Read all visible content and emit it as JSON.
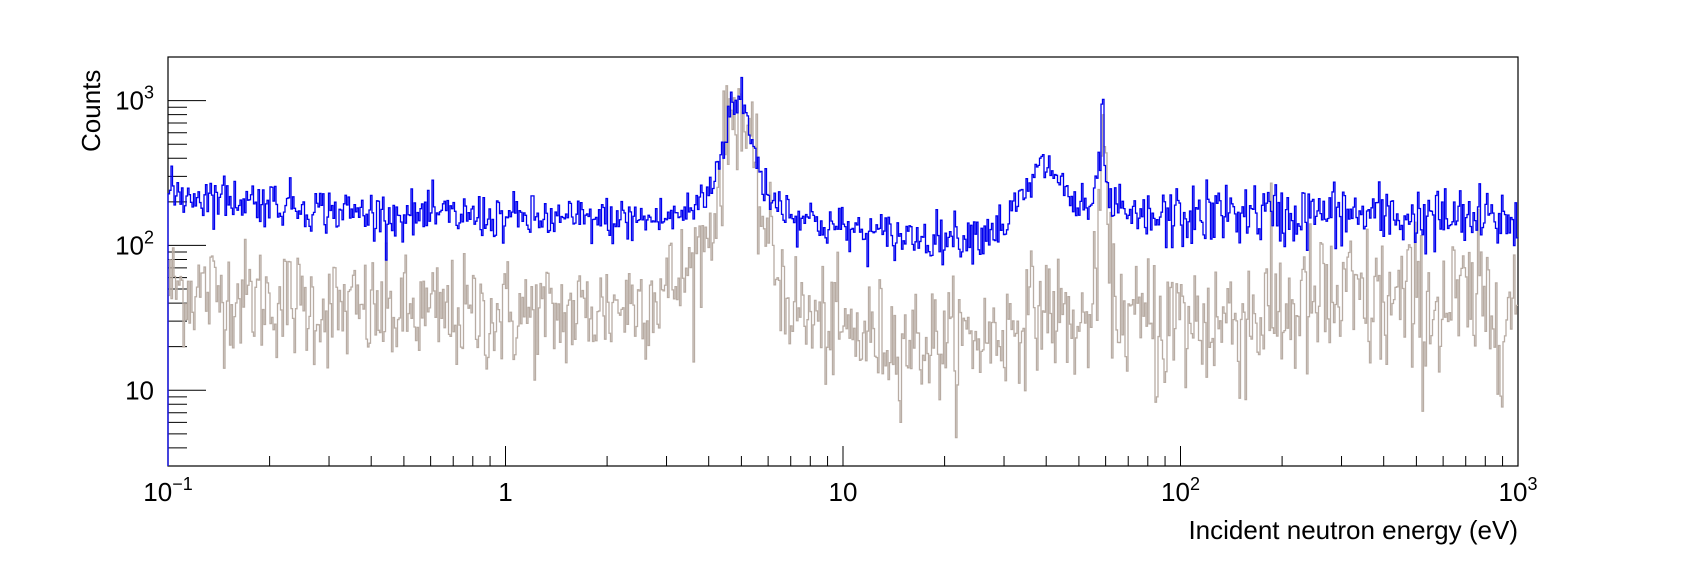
{
  "chart_data": {
    "type": "line",
    "style": "step-histogram",
    "xlabel": "Incident neutron energy (eV)",
    "ylabel": "Counts",
    "xscale": "log",
    "yscale": "log",
    "xlim": [
      0.1,
      1000
    ],
    "ylim": [
      3,
      2000
    ],
    "x_tick_labels": [
      {
        "value": 0.1,
        "base": "10",
        "exp": "−1"
      },
      {
        "value": 1,
        "base": "1",
        "exp": ""
      },
      {
        "value": 10,
        "base": "10",
        "exp": ""
      },
      {
        "value": 100,
        "base": "10",
        "exp": "2"
      },
      {
        "value": 1000,
        "base": "10",
        "exp": "3"
      }
    ],
    "y_tick_labels": [
      {
        "value": 10,
        "base": "10",
        "exp": ""
      },
      {
        "value": 100,
        "base": "10",
        "exp": "2"
      },
      {
        "value": 1000,
        "base": "10",
        "exp": "3"
      }
    ],
    "grid": false,
    "legend": "none",
    "series": [
      {
        "color": "#0000ee",
        "points": [
          [
            0.1,
            230
          ],
          [
            0.2,
            200
          ],
          [
            0.3,
            175
          ],
          [
            0.5,
            160
          ],
          [
            0.8,
            160
          ],
          [
            1.0,
            155
          ],
          [
            1.5,
            150
          ],
          [
            2.0,
            150
          ],
          [
            2.5,
            150
          ],
          [
            3.0,
            155
          ],
          [
            3.5,
            170
          ],
          [
            4.0,
            230
          ],
          [
            4.3,
            380
          ],
          [
            4.5,
            650
          ],
          [
            4.7,
            980
          ],
          [
            4.85,
            1080
          ],
          [
            5.0,
            1000
          ],
          [
            5.2,
            750
          ],
          [
            5.5,
            400
          ],
          [
            6.0,
            230
          ],
          [
            7.0,
            170
          ],
          [
            8.0,
            150
          ],
          [
            10.0,
            130
          ],
          [
            12.0,
            120
          ],
          [
            15.0,
            115
          ],
          [
            20.0,
            115
          ],
          [
            25.0,
            120
          ],
          [
            30.0,
            140
          ],
          [
            35.0,
            230
          ],
          [
            38.0,
            330
          ],
          [
            40.0,
            360
          ],
          [
            42.0,
            330
          ],
          [
            45.0,
            250
          ],
          [
            48.0,
            200
          ],
          [
            52.0,
            170
          ],
          [
            56.0,
            200
          ],
          [
            58.0,
            500
          ],
          [
            58.8,
            950
          ],
          [
            59.5,
            450
          ],
          [
            61.0,
            200
          ],
          [
            70.0,
            155
          ],
          [
            80.0,
            150
          ],
          [
            100.0,
            155
          ],
          [
            150.0,
            170
          ],
          [
            200.0,
            160
          ],
          [
            300.0,
            165
          ],
          [
            500.0,
            155
          ],
          [
            700.0,
            150
          ],
          [
            1000.0,
            150
          ]
        ]
      },
      {
        "color": "#b8aca3",
        "points": [
          [
            0.1,
            52
          ],
          [
            0.2,
            42
          ],
          [
            0.3,
            36
          ],
          [
            0.5,
            33
          ],
          [
            0.8,
            33
          ],
          [
            1.0,
            33
          ],
          [
            1.5,
            33
          ],
          [
            2.0,
            37
          ],
          [
            2.5,
            42
          ],
          [
            3.0,
            50
          ],
          [
            3.5,
            65
          ],
          [
            4.0,
            120
          ],
          [
            4.3,
            250
          ],
          [
            4.5,
            550
          ],
          [
            4.7,
            850
          ],
          [
            4.85,
            950
          ],
          [
            5.0,
            850
          ],
          [
            5.2,
            550
          ],
          [
            5.5,
            260
          ],
          [
            6.0,
            110
          ],
          [
            6.5,
            60
          ],
          [
            7.0,
            40
          ],
          [
            8.0,
            30
          ],
          [
            10.0,
            25
          ],
          [
            15.0,
            22
          ],
          [
            20.0,
            21
          ],
          [
            25.0,
            23
          ],
          [
            30.0,
            25
          ],
          [
            35.0,
            33
          ],
          [
            40.0,
            38
          ],
          [
            45.0,
            32
          ],
          [
            50.0,
            25
          ],
          [
            55.0,
            35
          ],
          [
            57.0,
            80
          ],
          [
            58.5,
            420
          ],
          [
            59.0,
            800
          ],
          [
            59.8,
            300
          ],
          [
            61.0,
            80
          ],
          [
            64.0,
            40
          ],
          [
            70.0,
            30
          ],
          [
            100.0,
            28
          ],
          [
            150.0,
            32
          ],
          [
            200.0,
            35
          ],
          [
            300.0,
            40
          ],
          [
            500.0,
            38
          ],
          [
            1000.0,
            38
          ]
        ]
      }
    ]
  }
}
